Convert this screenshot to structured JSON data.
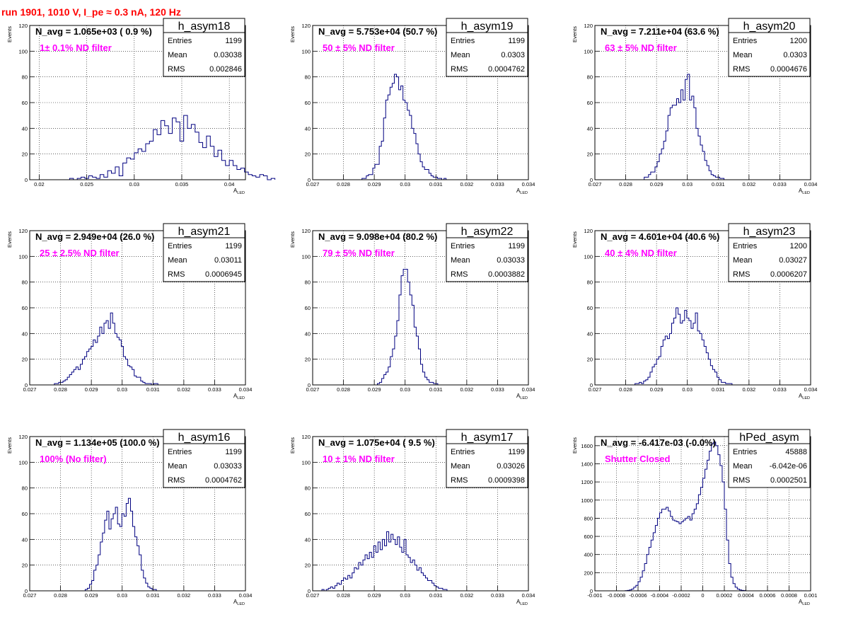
{
  "title": "run 1901,  1010 V, I_pe ≈ 0.3 nA, 120 Hz",
  "colors": {
    "title": "#ff0000",
    "histogram": "#000080",
    "annotation": "#ff00ff",
    "grid": "#000000"
  },
  "chart_data": [
    {
      "type": "histogram",
      "name": "h_asym18",
      "navg": "N_avg = 1.065e+03 ( 0.9 %)",
      "annotation": "1± 0.1% ND filter",
      "stats": {
        "entries_label": "Entries",
        "entries": "1199",
        "mean_label": "Mean",
        "mean": "0.03038",
        "rms_label": "RMS",
        "rms": "0.002846"
      },
      "xlabel": "A_LED",
      "ylabel": "Events",
      "xlim": [
        0.019,
        0.0417
      ],
      "ylim": [
        0,
        120
      ],
      "xticks": [
        0.02,
        0.025,
        0.03,
        0.035,
        0.04
      ],
      "xticklabels": [
        "0.02",
        "0.025",
        "0.03",
        "0.035",
        "0.04"
      ],
      "yticks": [
        0,
        20,
        40,
        60,
        80,
        100,
        120
      ],
      "bin_start": 0.0232,
      "bin_width": 0.0004,
      "values": [
        1,
        0,
        1,
        2,
        1,
        3,
        2,
        1,
        4,
        2,
        7,
        5,
        10,
        3,
        13,
        17,
        16,
        21,
        24,
        22,
        28,
        30,
        39,
        35,
        46,
        42,
        36,
        48,
        45,
        30,
        50,
        40,
        43,
        37,
        29,
        25,
        34,
        26,
        18,
        23,
        15,
        11,
        15,
        11,
        8,
        9,
        6,
        4,
        3,
        2,
        4,
        3,
        0,
        1
      ]
    },
    {
      "type": "histogram",
      "name": "h_asym19",
      "navg": "N_avg = 5.753e+04 (50.7 %)",
      "annotation": "50 ± 5% ND filter",
      "stats": {
        "entries_label": "Entries",
        "entries": "1199",
        "mean_label": "Mean",
        "mean": "0.0303",
        "rms_label": "RMS",
        "rms": "0.0004762"
      },
      "xlabel": "A_LED",
      "ylabel": "Events",
      "xlim": [
        0.027,
        0.034
      ],
      "ylim": [
        0,
        120
      ],
      "xticks": [
        0.027,
        0.028,
        0.029,
        0.03,
        0.031,
        0.032,
        0.033,
        0.034
      ],
      "xticklabels": [
        "0.027",
        "0.028",
        "0.029",
        "0.03",
        "0.031",
        "0.032",
        "0.033",
        "0.034"
      ],
      "yticks": [
        0,
        20,
        40,
        60,
        80,
        100,
        120
      ],
      "bin_start": 0.0286,
      "bin_width": 7e-05,
      "values": [
        1,
        1,
        3,
        4,
        4,
        9,
        12,
        12,
        26,
        30,
        48,
        62,
        66,
        72,
        75,
        82,
        80,
        70,
        73,
        62,
        60,
        54,
        50,
        40,
        36,
        28,
        20,
        14,
        10,
        8,
        8,
        5,
        3,
        2,
        2,
        1,
        1,
        0,
        1
      ]
    },
    {
      "type": "histogram",
      "name": "h_asym20",
      "navg": "N_avg = 7.211e+04 (63.6 %)",
      "annotation": "63 ± 5% ND filter",
      "stats": {
        "entries_label": "Entries",
        "entries": "1200",
        "mean_label": "Mean",
        "mean": "0.0303",
        "rms_label": "RMS",
        "rms": "0.0004676"
      },
      "xlabel": "A_LED",
      "ylabel": "Events",
      "xlim": [
        0.027,
        0.034
      ],
      "ylim": [
        0,
        120
      ],
      "xticks": [
        0.027,
        0.028,
        0.029,
        0.03,
        0.031,
        0.032,
        0.033,
        0.034
      ],
      "xticklabels": [
        "0.027",
        "0.028",
        "0.029",
        "0.03",
        "0.031",
        "0.032",
        "0.033",
        "0.034"
      ],
      "yticks": [
        0,
        20,
        40,
        60,
        80,
        100,
        120
      ],
      "bin_start": 0.0286,
      "bin_width": 7e-05,
      "values": [
        2,
        2,
        4,
        6,
        6,
        10,
        14,
        20,
        24,
        30,
        38,
        50,
        56,
        58,
        58,
        63,
        60,
        70,
        62,
        78,
        82,
        62,
        65,
        56,
        40,
        34,
        27,
        22,
        15,
        11,
        7,
        4,
        3,
        2,
        2,
        1,
        1
      ]
    },
    {
      "type": "histogram",
      "name": "h_asym21",
      "navg": "N_avg = 2.949e+04 (26.0 %)",
      "annotation": "25 ± 2.5% ND filter",
      "stats": {
        "entries_label": "Entries",
        "entries": "1199",
        "mean_label": "Mean",
        "mean": "0.03011",
        "rms_label": "RMS",
        "rms": "0.0006945"
      },
      "xlabel": "A_LED",
      "ylabel": "Events",
      "xlim": [
        0.027,
        0.034
      ],
      "ylim": [
        0,
        120
      ],
      "xticks": [
        0.027,
        0.028,
        0.029,
        0.03,
        0.031,
        0.032,
        0.033,
        0.034
      ],
      "xticklabels": [
        "0.027",
        "0.028",
        "0.029",
        "0.03",
        "0.031",
        "0.032",
        "0.033",
        "0.034"
      ],
      "yticks": [
        0,
        20,
        40,
        60,
        80,
        100,
        120
      ],
      "bin_start": 0.0278,
      "bin_width": 7e-05,
      "values": [
        1,
        1,
        2,
        2,
        3,
        4,
        6,
        8,
        10,
        12,
        14,
        12,
        16,
        20,
        22,
        26,
        28,
        30,
        35,
        33,
        38,
        45,
        40,
        48,
        50,
        44,
        56,
        48,
        40,
        37,
        35,
        30,
        22,
        20,
        15,
        14,
        12,
        7,
        6,
        6,
        3,
        2,
        1,
        1,
        1,
        0,
        1,
        1
      ]
    },
    {
      "type": "histogram",
      "name": "h_asym22",
      "navg": "N_avg = 9.098e+04 (80.2 %)",
      "annotation": "79 ± 5% ND filter",
      "stats": {
        "entries_label": "Entries",
        "entries": "1199",
        "mean_label": "Mean",
        "mean": "0.03033",
        "rms_label": "RMS",
        "rms": "0.0003882"
      },
      "xlabel": "A_LED",
      "ylabel": "Events",
      "xlim": [
        0.027,
        0.034
      ],
      "ylim": [
        0,
        120
      ],
      "xticks": [
        0.027,
        0.028,
        0.029,
        0.03,
        0.031,
        0.032,
        0.033,
        0.034
      ],
      "xticklabels": [
        "0.027",
        "0.028",
        "0.029",
        "0.03",
        "0.031",
        "0.032",
        "0.033",
        "0.034"
      ],
      "yticks": [
        0,
        20,
        40,
        60,
        80,
        100,
        120
      ],
      "bin_start": 0.0291,
      "bin_width": 7e-05,
      "values": [
        1,
        2,
        5,
        8,
        10,
        14,
        22,
        28,
        38,
        50,
        70,
        85,
        90,
        90,
        80,
        70,
        62,
        45,
        38,
        28,
        16,
        10,
        6,
        4,
        2,
        2,
        1,
        1
      ]
    },
    {
      "type": "histogram",
      "name": "h_asym23",
      "navg": "N_avg = 4.601e+04 (40.6 %)",
      "annotation": "40 ± 4% ND filter",
      "stats": {
        "entries_label": "Entries",
        "entries": "1200",
        "mean_label": "Mean",
        "mean": "0.03027",
        "rms_label": "RMS",
        "rms": "0.0006207"
      },
      "xlabel": "A_LED",
      "ylabel": "Events",
      "xlim": [
        0.027,
        0.034
      ],
      "ylim": [
        0,
        120
      ],
      "xticks": [
        0.027,
        0.028,
        0.029,
        0.03,
        0.031,
        0.032,
        0.033,
        0.034
      ],
      "xticklabels": [
        "0.027",
        "0.028",
        "0.029",
        "0.03",
        "0.031",
        "0.032",
        "0.033",
        "0.034"
      ],
      "yticks": [
        0,
        20,
        40,
        60,
        80,
        100,
        120
      ],
      "bin_start": 0.0283,
      "bin_width": 7e-05,
      "values": [
        1,
        1,
        2,
        1,
        3,
        4,
        6,
        10,
        14,
        16,
        20,
        22,
        30,
        35,
        38,
        36,
        40,
        48,
        52,
        60,
        55,
        48,
        50,
        58,
        52,
        50,
        44,
        48,
        56,
        42,
        40,
        35,
        30,
        25,
        20,
        15,
        12,
        10,
        6,
        4,
        2,
        2,
        1,
        1,
        1
      ]
    },
    {
      "type": "histogram",
      "name": "h_asym16",
      "navg": "N_avg = 1.134e+05 (100.0 %)",
      "annotation": "100% (No filter)",
      "stats": {
        "entries_label": "Entries",
        "entries": "1199",
        "mean_label": "Mean",
        "mean": "0.03033",
        "rms_label": "RMS",
        "rms": "0.0004762"
      },
      "xlabel": "A_LED",
      "ylabel": "Events",
      "xlim": [
        0.027,
        0.034
      ],
      "ylim": [
        0,
        120
      ],
      "xticks": [
        0.027,
        0.028,
        0.029,
        0.03,
        0.031,
        0.032,
        0.033,
        0.034
      ],
      "xticklabels": [
        "0.027",
        "0.028",
        "0.029",
        "0.03",
        "0.031",
        "0.032",
        "0.033",
        "0.034"
      ],
      "yticks": [
        0,
        20,
        40,
        60,
        80,
        100,
        120
      ],
      "bin_start": 0.0288,
      "bin_width": 7e-05,
      "values": [
        1,
        2,
        5,
        8,
        16,
        20,
        28,
        38,
        45,
        55,
        62,
        48,
        56,
        60,
        65,
        52,
        50,
        60,
        58,
        68,
        72,
        62,
        50,
        42,
        35,
        28,
        16,
        10,
        6,
        3,
        2,
        1,
        1
      ]
    },
    {
      "type": "histogram",
      "name": "h_asym17",
      "navg": "N_avg = 1.075e+04 ( 9.5 %)",
      "annotation": "10 ± 1% ND filter",
      "stats": {
        "entries_label": "Entries",
        "entries": "1199",
        "mean_label": "Mean",
        "mean": "0.03026",
        "rms_label": "RMS",
        "rms": "0.0009398"
      },
      "xlabel": "A_LED",
      "ylabel": "Events",
      "xlim": [
        0.027,
        0.034
      ],
      "ylim": [
        0,
        120
      ],
      "xticks": [
        0.027,
        0.028,
        0.029,
        0.03,
        0.031,
        0.032,
        0.033,
        0.034
      ],
      "xticklabels": [
        "0.027",
        "0.028",
        "0.029",
        "0.03",
        "0.031",
        "0.032",
        "0.033",
        "0.034"
      ],
      "yticks": [
        0,
        20,
        40,
        60,
        80,
        100,
        120
      ],
      "bin_start": 0.0273,
      "bin_width": 7e-05,
      "values": [
        1,
        0,
        1,
        2,
        3,
        2,
        4,
        6,
        5,
        8,
        10,
        9,
        12,
        10,
        14,
        18,
        17,
        22,
        20,
        24,
        28,
        25,
        30,
        26,
        35,
        30,
        38,
        32,
        40,
        35,
        46,
        38,
        44,
        40,
        36,
        42,
        34,
        30,
        40,
        28,
        26,
        22,
        24,
        20,
        16,
        18,
        14,
        12,
        10,
        8,
        8,
        6,
        4,
        3,
        2,
        2,
        1,
        1
      ]
    },
    {
      "type": "histogram",
      "name": "hPed_asym",
      "navg": "N_avg = -6.417e-03 (-0.0%)",
      "annotation": "Shutter Closed",
      "stats": {
        "entries_label": "Entries",
        "entries": "45888",
        "mean_label": "Mean",
        "mean": "-6.042e-06",
        "rms_label": "RMS",
        "rms": "0.0002501"
      },
      "xlabel": "A_LED",
      "ylabel": "Events",
      "xlim": [
        -0.001,
        0.001
      ],
      "ylim": [
        0,
        1700
      ],
      "xticks": [
        -0.001,
        -0.0008,
        -0.0006,
        -0.0004,
        -0.0002,
        0,
        0.0002,
        0.0004,
        0.0006,
        0.0008,
        0.001
      ],
      "xticklabels": [
        "-0.001",
        "-0.0008",
        "-0.0006",
        "-0.0004",
        "-0.0002",
        "0",
        "0.0002",
        "0.0004",
        "0.0006",
        "0.0008",
        "0.001"
      ],
      "yticks": [
        0,
        200,
        400,
        600,
        800,
        1000,
        1200,
        1400,
        1600
      ],
      "bin_start": -0.00072,
      "bin_width": 2e-05,
      "values": [
        2,
        5,
        10,
        20,
        40,
        60,
        100,
        150,
        220,
        300,
        400,
        480,
        560,
        640,
        720,
        800,
        860,
        900,
        900,
        920,
        880,
        820,
        780,
        770,
        760,
        740,
        760,
        780,
        800,
        820,
        780,
        850,
        900,
        960,
        1060,
        1140,
        1240,
        1340,
        1440,
        1540,
        1620,
        1640,
        1600,
        1500,
        1380,
        1200,
        900,
        560,
        300,
        150,
        80,
        40,
        20,
        10,
        5,
        3
      ]
    }
  ]
}
